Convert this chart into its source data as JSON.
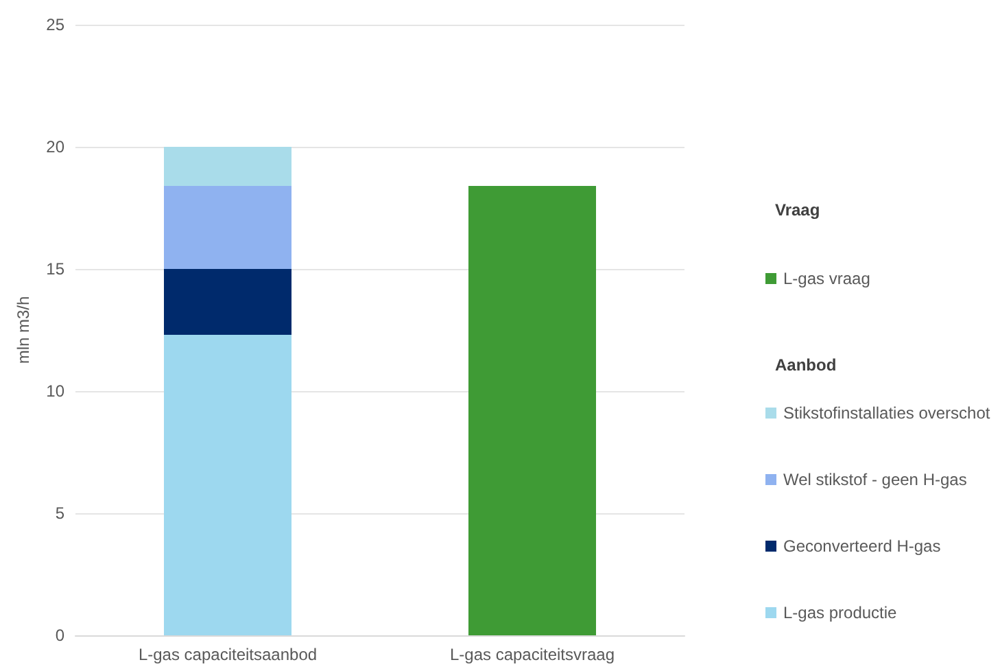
{
  "chart_data": {
    "type": "bar",
    "stacked": true,
    "ylabel": "mln m3/h",
    "categories": [
      "L-gas capaciteitsaanbod",
      "L-gas capaciteitsvraag"
    ],
    "series": [
      {
        "name": "L-gas productie",
        "color": "#9dd8ef",
        "values": [
          12.3,
          null
        ]
      },
      {
        "name": "Geconverteerd H-gas",
        "color": "#002a6c",
        "values": [
          2.7,
          null
        ]
      },
      {
        "name": "Wel stikstof - geen H-gas",
        "color": "#8fb2f0",
        "values": [
          3.4,
          null
        ]
      },
      {
        "name": "Stikstofinstallaties overschot",
        "color": "#a9dcea",
        "values": [
          1.6,
          null
        ]
      },
      {
        "name": "L-gas vraag",
        "color": "#3f9b35",
        "values": [
          null,
          18.4
        ]
      }
    ],
    "annotations": [
      "Vraag",
      "Aanbod"
    ],
    "ylim": [
      0,
      25
    ],
    "yticks": [
      0,
      5,
      10,
      15,
      20,
      25
    ],
    "grid": "y",
    "legend": "right"
  }
}
